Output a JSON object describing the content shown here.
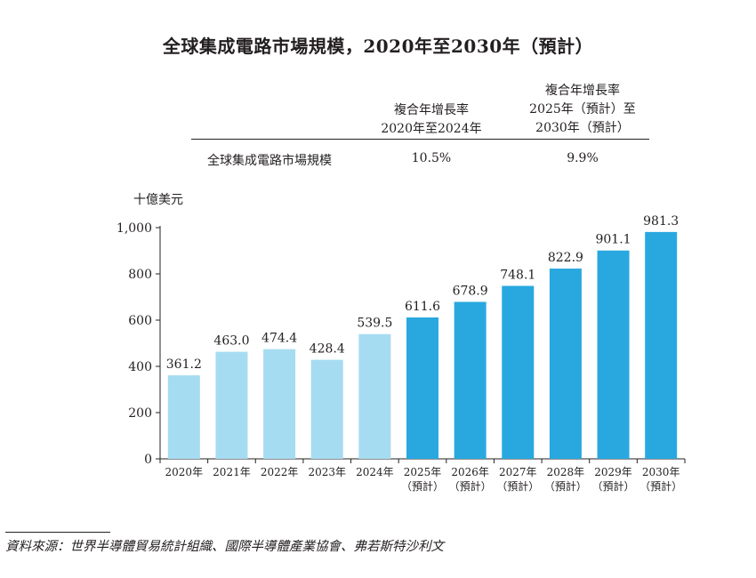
{
  "title": "全球集成電路市場規模，2020年至2030年（預計）",
  "cagr_table": {
    "col1_header": [
      "複合年增長率",
      "2020年至2024年"
    ],
    "col2_header": [
      "複合年增長率",
      "2025年（預計）至",
      "2030年（預計）"
    ],
    "row_label": "全球集成電路市場規模",
    "row_value_1": "10.5%",
    "row_value_2": "9.9%"
  },
  "footnote": "資料來源：世界半導體貿易統計組織、國際半導體產業協會、弗若斯特沙利文",
  "colors": {
    "historical": "#a6dcf1",
    "forecast": "#29a8df",
    "text": "#231f20"
  },
  "chart_data": {
    "type": "bar",
    "ylabel": "十億美元",
    "xlabel": "",
    "ylim": [
      0,
      1000
    ],
    "yticks": [
      0,
      200,
      400,
      600,
      800,
      1000
    ],
    "ytick_labels": [
      "0",
      "200",
      "400",
      "600",
      "800",
      "1,000"
    ],
    "categories": [
      [
        "2020年"
      ],
      [
        "2021年"
      ],
      [
        "2022年"
      ],
      [
        "2023年"
      ],
      [
        "2024年"
      ],
      [
        "2025年",
        "（預計）"
      ],
      [
        "2026年",
        "（預計）"
      ],
      [
        "2027年",
        "（預計）"
      ],
      [
        "2028年",
        "（預計）"
      ],
      [
        "2029年",
        "（預計）"
      ],
      [
        "2030年",
        "（預計）"
      ]
    ],
    "values": [
      361.2,
      463.0,
      474.4,
      428.4,
      539.5,
      611.6,
      678.9,
      748.1,
      822.9,
      901.1,
      981.3
    ],
    "value_labels": [
      "361.2",
      "463.0",
      "474.4",
      "428.4",
      "539.5",
      "611.6",
      "678.9",
      "748.1",
      "822.9",
      "901.1",
      "981.3"
    ],
    "forecast": [
      false,
      false,
      false,
      false,
      false,
      true,
      true,
      true,
      true,
      true,
      true
    ]
  }
}
